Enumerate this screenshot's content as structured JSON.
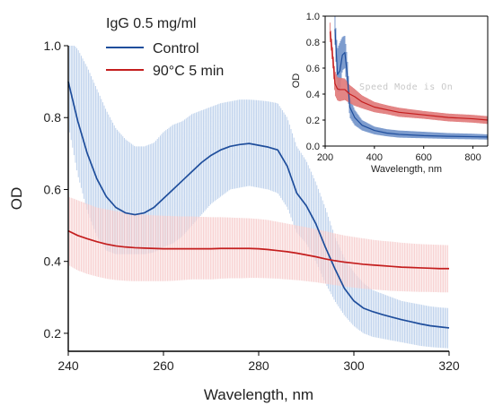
{
  "chart_data": [
    {
      "type": "line",
      "title": "",
      "xlabel": "Wavelength, nm",
      "ylabel": "OD",
      "xlim": [
        240,
        320
      ],
      "ylim": [
        0.15,
        1.0
      ],
      "xticks": [
        240,
        260,
        280,
        300,
        320
      ],
      "yticks": [
        0.2,
        0.4,
        0.6,
        0.8,
        1.0
      ],
      "xtick_labels": [
        "240",
        "260",
        "280",
        "300",
        "320"
      ],
      "ytick_labels": [
        "0.2",
        "0.4",
        "0.6",
        "0.8",
        "1.0"
      ],
      "grid": false,
      "legend_title": "IgG 0.5 mg/ml",
      "legend_position": "top-left",
      "series": [
        {
          "name": "Control",
          "color": "#1f4e9c",
          "band_color": "#aac4e6",
          "x": [
            240,
            242,
            244,
            246,
            248,
            250,
            252,
            254,
            256,
            258,
            260,
            262,
            264,
            266,
            268,
            270,
            272,
            274,
            276,
            278,
            280,
            282,
            284,
            286,
            288,
            290,
            292,
            294,
            296,
            298,
            300,
            302,
            304,
            306,
            308,
            310,
            312,
            314,
            316,
            318,
            320
          ],
          "y": [
            0.9,
            0.79,
            0.7,
            0.63,
            0.58,
            0.55,
            0.535,
            0.53,
            0.535,
            0.55,
            0.575,
            0.6,
            0.625,
            0.65,
            0.675,
            0.695,
            0.71,
            0.72,
            0.725,
            0.728,
            0.723,
            0.718,
            0.71,
            0.665,
            0.59,
            0.555,
            0.505,
            0.44,
            0.38,
            0.325,
            0.29,
            0.27,
            0.26,
            0.252,
            0.245,
            0.238,
            0.232,
            0.226,
            0.221,
            0.218,
            0.215
          ],
          "y_upper": [
            1.02,
            0.99,
            0.94,
            0.88,
            0.82,
            0.77,
            0.74,
            0.72,
            0.72,
            0.73,
            0.76,
            0.78,
            0.79,
            0.81,
            0.82,
            0.83,
            0.84,
            0.845,
            0.85,
            0.85,
            0.848,
            0.845,
            0.84,
            0.8,
            0.72,
            0.68,
            0.62,
            0.55,
            0.47,
            0.41,
            0.37,
            0.34,
            0.32,
            0.31,
            0.3,
            0.29,
            0.285,
            0.28,
            0.275,
            0.272,
            0.27
          ],
          "y_lower": [
            0.78,
            0.64,
            0.54,
            0.47,
            0.43,
            0.42,
            0.42,
            0.42,
            0.42,
            0.425,
            0.44,
            0.45,
            0.47,
            0.5,
            0.53,
            0.56,
            0.58,
            0.6,
            0.605,
            0.61,
            0.605,
            0.6,
            0.59,
            0.55,
            0.48,
            0.45,
            0.4,
            0.34,
            0.29,
            0.25,
            0.22,
            0.2,
            0.19,
            0.185,
            0.18,
            0.175,
            0.17,
            0.165,
            0.162,
            0.16,
            0.158
          ]
        },
        {
          "name": "90°C 5 min",
          "color": "#c41e1e",
          "band_color": "#f4c2c2",
          "x": [
            240,
            242,
            244,
            246,
            248,
            250,
            252,
            254,
            256,
            258,
            260,
            262,
            264,
            266,
            268,
            270,
            272,
            274,
            276,
            278,
            280,
            282,
            284,
            286,
            288,
            290,
            292,
            294,
            296,
            298,
            300,
            302,
            304,
            306,
            308,
            310,
            312,
            314,
            316,
            318,
            320
          ],
          "y": [
            0.485,
            0.472,
            0.463,
            0.455,
            0.448,
            0.443,
            0.44,
            0.438,
            0.437,
            0.436,
            0.435,
            0.435,
            0.435,
            0.435,
            0.435,
            0.435,
            0.436,
            0.436,
            0.436,
            0.436,
            0.435,
            0.433,
            0.43,
            0.427,
            0.423,
            0.418,
            0.413,
            0.407,
            0.402,
            0.398,
            0.395,
            0.392,
            0.39,
            0.388,
            0.386,
            0.384,
            0.383,
            0.382,
            0.381,
            0.38,
            0.38
          ],
          "y_upper": [
            0.58,
            0.57,
            0.56,
            0.55,
            0.545,
            0.54,
            0.535,
            0.532,
            0.53,
            0.528,
            0.527,
            0.526,
            0.525,
            0.525,
            0.524,
            0.523,
            0.523,
            0.522,
            0.521,
            0.52,
            0.518,
            0.515,
            0.51,
            0.505,
            0.5,
            0.495,
            0.49,
            0.484,
            0.478,
            0.472,
            0.468,
            0.464,
            0.46,
            0.457,
            0.455,
            0.452,
            0.45,
            0.448,
            0.447,
            0.446,
            0.445
          ],
          "y_lower": [
            0.39,
            0.375,
            0.365,
            0.358,
            0.352,
            0.348,
            0.346,
            0.345,
            0.345,
            0.345,
            0.345,
            0.346,
            0.348,
            0.35,
            0.35,
            0.35,
            0.352,
            0.353,
            0.353,
            0.354,
            0.354,
            0.353,
            0.352,
            0.35,
            0.348,
            0.345,
            0.342,
            0.338,
            0.334,
            0.33,
            0.327,
            0.324,
            0.322,
            0.32,
            0.318,
            0.317,
            0.316,
            0.315,
            0.315,
            0.314,
            0.314
          ]
        }
      ]
    },
    {
      "type": "line",
      "title": "",
      "xlabel": "Wavelength, nm",
      "ylabel": "OD",
      "xlim": [
        200,
        860
      ],
      "ylim": [
        0.0,
        1.0
      ],
      "xticks": [
        200,
        400,
        600,
        800
      ],
      "yticks": [
        0.0,
        0.2,
        0.4,
        0.6,
        0.8,
        1.0
      ],
      "xtick_labels": [
        "200",
        "400",
        "600",
        "800"
      ],
      "ytick_labels": [
        "0.0",
        "0.2",
        "0.4",
        "0.6",
        "0.8",
        "1.0"
      ],
      "grid": false,
      "annotation": "Speed Mode is On",
      "series": [
        {
          "color": "#1f4e9c",
          "band_color": "#6f91c9",
          "x": [
            240,
            250,
            260,
            270,
            280,
            290,
            300,
            320,
            350,
            400,
            450,
            500,
            600,
            700,
            800,
            860
          ],
          "y": [
            0.9,
            0.55,
            0.58,
            0.7,
            0.72,
            0.55,
            0.3,
            0.22,
            0.16,
            0.12,
            0.1,
            0.09,
            0.08,
            0.075,
            0.072,
            0.07
          ],
          "y_upper": [
            1.0,
            0.75,
            0.8,
            0.84,
            0.85,
            0.68,
            0.38,
            0.28,
            0.2,
            0.15,
            0.13,
            0.12,
            0.11,
            0.1,
            0.095,
            0.09
          ],
          "y_lower": [
            0.78,
            0.42,
            0.42,
            0.58,
            0.6,
            0.42,
            0.22,
            0.16,
            0.12,
            0.09,
            0.075,
            0.065,
            0.06,
            0.055,
            0.052,
            0.05
          ]
        },
        {
          "color": "#c41e1e",
          "band_color": "#e07878",
          "x": [
            220,
            230,
            240,
            250,
            260,
            280,
            300,
            320,
            350,
            400,
            450,
            500,
            600,
            700,
            800,
            860
          ],
          "y": [
            0.88,
            0.7,
            0.48,
            0.44,
            0.435,
            0.435,
            0.4,
            0.38,
            0.34,
            0.3,
            0.28,
            0.26,
            0.24,
            0.22,
            0.21,
            0.2
          ],
          "y_upper": [
            0.95,
            0.78,
            0.58,
            0.53,
            0.525,
            0.52,
            0.47,
            0.44,
            0.39,
            0.34,
            0.315,
            0.295,
            0.27,
            0.25,
            0.24,
            0.23
          ],
          "y_lower": [
            0.8,
            0.62,
            0.39,
            0.35,
            0.345,
            0.354,
            0.33,
            0.31,
            0.29,
            0.26,
            0.245,
            0.225,
            0.21,
            0.19,
            0.18,
            0.17
          ]
        }
      ]
    }
  ]
}
